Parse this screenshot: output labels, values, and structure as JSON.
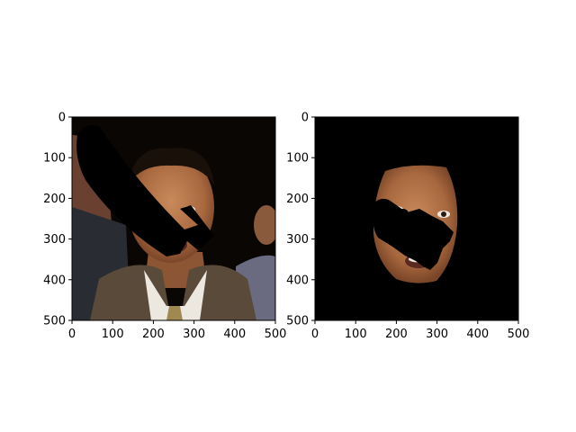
{
  "figure": {
    "panels": [
      {
        "id": "left",
        "image_description": "photo of a young man in a suit with a black occluding mask stripe",
        "x_ticks": [
          "0",
          "100",
          "200",
          "300",
          "400",
          "500"
        ],
        "y_ticks": [
          "0",
          "100",
          "200",
          "300",
          "400",
          "500"
        ]
      },
      {
        "id": "right",
        "image_description": "segmented face region on black background with black mask stripe",
        "x_ticks": [
          "0",
          "100",
          "200",
          "300",
          "400",
          "500"
        ],
        "y_ticks": [
          "0",
          "100",
          "200",
          "300",
          "400",
          "500"
        ]
      }
    ]
  },
  "colors": {
    "background": "#000000",
    "skin": "#b5764a",
    "suit": "#5a4a3a",
    "shirt": "#e8e4dc"
  }
}
